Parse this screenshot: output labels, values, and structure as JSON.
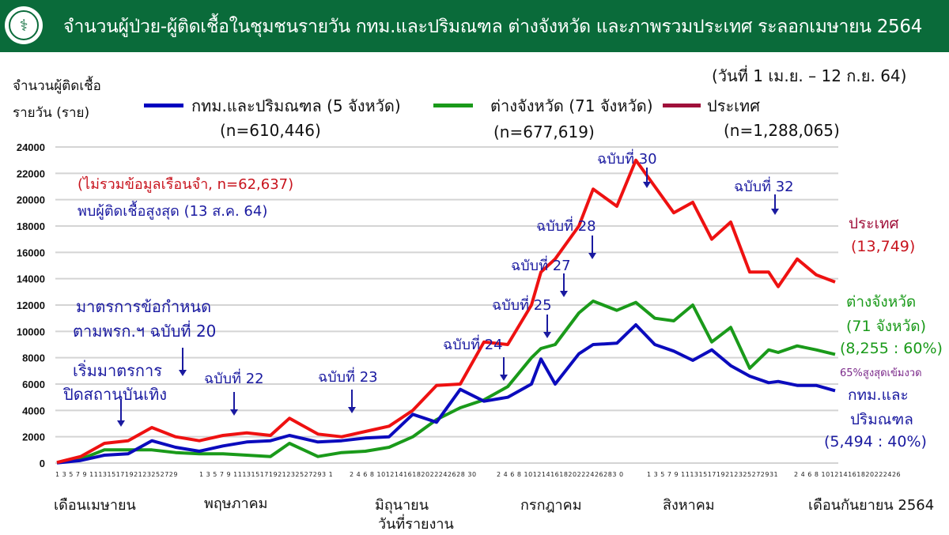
{
  "header": {
    "title": "จำนวนผู้ป่วย-ผู้ติดเชื้อในชุมชนรายวัน กทม.และปริมณฑล ต่างจังหวัด และภาพรวมประเทศ ระลอกเมษายน 2564",
    "logo": "ministry-of-public-health-logo"
  },
  "date_range": "(วันที่ 1 เม.ย. – 12 ก.ย. 64)",
  "y_title_line1": "จำนวนผู้ติดเชื้อ",
  "y_title_line2": "รายวัน (ราย)",
  "legend": [
    {
      "label": "กทม.และปริมณฑล (5 จังหวัด)",
      "n": "(n=610,446)",
      "color": "#0000c0"
    },
    {
      "label": "ต่างจังหวัด (71 จังหวัด)",
      "n": "(n=677,619)",
      "color": "#1a9a1a"
    },
    {
      "label": "ประเทศ",
      "n": "(n=1,288,065)",
      "color": "#a0103a"
    }
  ],
  "notes": {
    "prison": "(ไม่รวมข้อมูลเรือนจำ, n=62,637)",
    "peak": "พบผู้ติดเชื้อสูงสุด (13 ส.ค. 64)",
    "measure_20_l1": "มาตรการข้อกำหนด",
    "measure_20_l2": "ตามพรก.ฯ ฉบับที่ 20",
    "entertain_l1": "เริ่มมาตรการ",
    "entertain_l2": "ปิดสถานบันเทิง",
    "m22": "ฉบับที่ 22",
    "m23": "ฉบับที่ 23",
    "m24": "ฉบับที่ 24",
    "m25": "ฉบับที่ 25",
    "m27": "ฉบับที่ 27",
    "m28": "ฉบับที่ 28",
    "m30": "ฉบับที่ 30",
    "m32": "ฉบับที่ 32"
  },
  "right_labels": {
    "country": "ประเทศ",
    "country_val": "(13,749)",
    "prov_l1": "ต่างจังหวัด",
    "prov_l2": "(71 จังหวัด)",
    "prov_val": "(8,255 : 60%)",
    "prov_note": "65%สูงสุดเข้มงวด",
    "bkk_l1": "กทม.และ",
    "bkk_l2": "ปริมณฑล",
    "bkk_val": "(5,494 : 40%)"
  },
  "x_tick_text": {
    "apr": "1 3 5 7 9 11131517192123252729",
    "may": "1 3 5 7 9 111315171921232527293 1",
    "jun": "2 4 6 8 10121416182022242628 30",
    "jul": "2 4 6 8 101214161820222426283 0",
    "aug": "1 3 5 7 9 1113151719212325272931",
    "sep": "2 4 6 8 101214161820222426"
  },
  "months": [
    "เดือนเมษายน",
    "พฤษภาคม",
    "มิถุนายน",
    "กรกฎาคม",
    "สิงหาคม",
    "เดือนกันยายน 2564"
  ],
  "x_axis_title": "วันที่รายงาน",
  "chart_data": {
    "type": "line",
    "title": "จำนวนผู้ป่วย-ผู้ติดเชื้อในชุมชนรายวัน กทม.และปริมณฑล ต่างจังหวัด และภาพรวมประเทศ ระลอกเมษายน 2564",
    "xlabel": "วันที่รายงาน",
    "ylabel": "จำนวนผู้ติดเชื้อรายวัน (ราย)",
    "ylim": [
      0,
      24000
    ],
    "yticks": [
      0,
      2000,
      4000,
      6000,
      8000,
      10000,
      12000,
      14000,
      16000,
      18000,
      20000,
      22000,
      24000
    ],
    "grid": true,
    "legend_position": "top",
    "x_day_index_note": "day 0 = 1 Apr 2021, day 164 = 12 Sep 2021",
    "x": [
      0,
      5,
      10,
      15,
      20,
      25,
      30,
      35,
      40,
      45,
      49,
      55,
      60,
      65,
      70,
      75,
      80,
      85,
      90,
      95,
      100,
      102,
      105,
      110,
      113,
      118,
      122,
      126,
      130,
      134,
      138,
      142,
      146,
      150,
      152,
      156,
      160,
      164
    ],
    "series": [
      {
        "name": "ประเทศ",
        "values": [
          50,
          500,
          1500,
          1700,
          2700,
          2000,
          1700,
          2100,
          2300,
          2100,
          3400,
          2200,
          2000,
          2400,
          2800,
          4000,
          5900,
          6000,
          9200,
          9000,
          12000,
          14500,
          15500,
          18000,
          20800,
          19500,
          23000,
          21000,
          19000,
          19800,
          17000,
          18300,
          14500,
          14500,
          13400,
          15500,
          14300,
          13749
        ]
      },
      {
        "name": "ต่างจังหวัด (71 จังหวัด)",
        "values": [
          30,
          300,
          1000,
          1000,
          1000,
          800,
          700,
          700,
          600,
          500,
          1500,
          500,
          800,
          900,
          1200,
          2000,
          3300,
          4200,
          4800,
          5800,
          8000,
          8700,
          9000,
          11400,
          12300,
          11600,
          12200,
          11000,
          10800,
          12000,
          9200,
          10300,
          7200,
          8600,
          8400,
          8900,
          8600,
          8255
        ]
      },
      {
        "name": "กทม.และปริมณฑล (5 จังหวัด)",
        "values": [
          20,
          200,
          600,
          700,
          1700,
          1200,
          900,
          1300,
          1600,
          1700,
          2100,
          1600,
          1700,
          1900,
          2000,
          3700,
          3100,
          5600,
          4700,
          5000,
          6000,
          7900,
          6000,
          8300,
          9000,
          9100,
          10500,
          9000,
          8500,
          7800,
          8600,
          7400,
          6600,
          6100,
          6200,
          5900,
          5900,
          5494
        ]
      }
    ],
    "annotations": [
      "(ไม่รวมข้อมูลเรือนจำ, n=62,637)",
      "พบผู้ติดเชื้อสูงสุด (13 ส.ค. 64)",
      "มาตรการข้อกำหนดตามพรก.ฯ ฉบับที่ 20",
      "เริ่มมาตรการปิดสถานบันเทิง",
      "ฉบับที่ 22",
      "ฉบับที่ 23",
      "ฉบับที่ 24",
      "ฉบับที่ 25",
      "ฉบับที่ 27",
      "ฉบับที่ 28",
      "ฉบับที่ 30",
      "ฉบับที่ 32",
      "ประเทศ (13,749)",
      "ต่างจังหวัด (71 จังหวัด) (8,255 : 60%)",
      "65%สูงสุดเข้มงวด",
      "กทม.และปริมณฑล (5,494 : 40%)"
    ]
  }
}
